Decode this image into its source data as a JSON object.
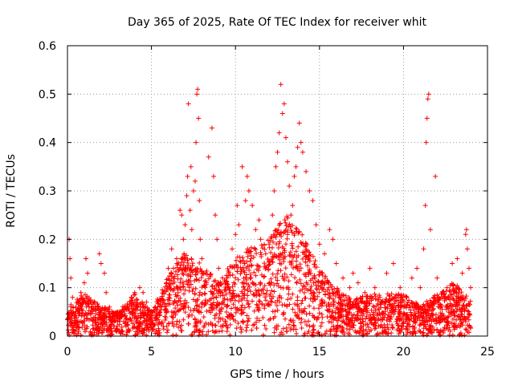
{
  "chart_data": {
    "type": "scatter",
    "title": "Day 365 of 2025, Rate Of TEC Index for receiver whit",
    "xlabel": "GPS time / hours",
    "ylabel": "ROTI / TECUs",
    "xlim": [
      0,
      25
    ],
    "ylim": [
      0,
      0.6
    ],
    "x_ticks": [
      "0",
      "5",
      "10",
      "15",
      "20",
      "25"
    ],
    "y_ticks": [
      "0",
      "0.1",
      "0.2",
      "0.3",
      "0.4",
      "0.5",
      "0.6"
    ],
    "grid": true,
    "marker": "+",
    "color": "#ff0000",
    "series": [
      {
        "points": [
          [
            0.1,
            0.2
          ],
          [
            0.15,
            0.16
          ],
          [
            0.2,
            0.12
          ],
          [
            0.3,
            0.08
          ],
          [
            0.5,
            0.06
          ],
          [
            0.8,
            0.09
          ],
          [
            1.0,
            0.11
          ],
          [
            1.1,
            0.16
          ],
          [
            1.2,
            0.13
          ],
          [
            1.5,
            0.07
          ],
          [
            1.9,
            0.17
          ],
          [
            2.0,
            0.15
          ],
          [
            2.3,
            0.09
          ],
          [
            2.2,
            0.13
          ],
          [
            2.5,
            0.06
          ],
          [
            3.0,
            0.05
          ],
          [
            3.5,
            0.06
          ],
          [
            3.8,
            0.08
          ],
          [
            4.0,
            0.09
          ],
          [
            4.3,
            0.1
          ],
          [
            4.5,
            0.09
          ],
          [
            4.7,
            0.07
          ],
          [
            5.2,
            0.05
          ],
          [
            5.6,
            0.06
          ],
          [
            5.9,
            0.11
          ],
          [
            6.0,
            0.14
          ],
          [
            6.2,
            0.18
          ],
          [
            6.3,
            0.12
          ],
          [
            6.5,
            0.16
          ],
          [
            6.7,
            0.26
          ],
          [
            6.8,
            0.25
          ],
          [
            6.9,
            0.2
          ],
          [
            7.0,
            0.23
          ],
          [
            7.1,
            0.29
          ],
          [
            7.15,
            0.33
          ],
          [
            7.2,
            0.48
          ],
          [
            7.3,
            0.26
          ],
          [
            7.35,
            0.35
          ],
          [
            7.4,
            0.22
          ],
          [
            7.5,
            0.3
          ],
          [
            7.6,
            0.32
          ],
          [
            7.65,
            0.4
          ],
          [
            7.7,
            0.5
          ],
          [
            7.75,
            0.51
          ],
          [
            7.8,
            0.45
          ],
          [
            7.85,
            0.28
          ],
          [
            7.9,
            0.2
          ],
          [
            8.0,
            0.16
          ],
          [
            8.2,
            0.1
          ],
          [
            8.4,
            0.37
          ],
          [
            8.6,
            0.43
          ],
          [
            8.7,
            0.33
          ],
          [
            8.8,
            0.25
          ],
          [
            8.9,
            0.2
          ],
          [
            9.0,
            0.14
          ],
          [
            9.2,
            0.09
          ],
          [
            9.5,
            0.12
          ],
          [
            9.8,
            0.18
          ],
          [
            10.0,
            0.21
          ],
          [
            10.1,
            0.27
          ],
          [
            10.2,
            0.23
          ],
          [
            10.4,
            0.35
          ],
          [
            10.6,
            0.28
          ],
          [
            10.7,
            0.33
          ],
          [
            10.8,
            0.3
          ],
          [
            11.0,
            0.27
          ],
          [
            11.2,
            0.22
          ],
          [
            11.4,
            0.24
          ],
          [
            11.5,
            0.2
          ],
          [
            11.8,
            0.17
          ],
          [
            12.0,
            0.19
          ],
          [
            12.2,
            0.25
          ],
          [
            12.3,
            0.3
          ],
          [
            12.4,
            0.35
          ],
          [
            12.5,
            0.38
          ],
          [
            12.6,
            0.42
          ],
          [
            12.7,
            0.52
          ],
          [
            12.8,
            0.46
          ],
          [
            12.9,
            0.48
          ],
          [
            13.0,
            0.41
          ],
          [
            13.1,
            0.36
          ],
          [
            13.2,
            0.31
          ],
          [
            13.3,
            0.25
          ],
          [
            13.4,
            0.27
          ],
          [
            13.5,
            0.33
          ],
          [
            13.6,
            0.35
          ],
          [
            13.7,
            0.39
          ],
          [
            13.8,
            0.44
          ],
          [
            13.9,
            0.4
          ],
          [
            14.0,
            0.38
          ],
          [
            14.2,
            0.34
          ],
          [
            14.4,
            0.3
          ],
          [
            14.6,
            0.28
          ],
          [
            14.8,
            0.23
          ],
          [
            15.0,
            0.19
          ],
          [
            15.3,
            0.17
          ],
          [
            15.6,
            0.22
          ],
          [
            15.8,
            0.2
          ],
          [
            16.0,
            0.15
          ],
          [
            16.4,
            0.12
          ],
          [
            16.8,
            0.1
          ],
          [
            17.0,
            0.13
          ],
          [
            17.3,
            0.11
          ],
          [
            17.7,
            0.09
          ],
          [
            18.0,
            0.14
          ],
          [
            18.3,
            0.1
          ],
          [
            18.6,
            0.08
          ],
          [
            19.0,
            0.13
          ],
          [
            19.4,
            0.15
          ],
          [
            19.8,
            0.1
          ],
          [
            20.2,
            0.08
          ],
          [
            20.5,
            0.12
          ],
          [
            20.8,
            0.14
          ],
          [
            21.0,
            0.1
          ],
          [
            21.2,
            0.18
          ],
          [
            21.3,
            0.27
          ],
          [
            21.35,
            0.4
          ],
          [
            21.4,
            0.45
          ],
          [
            21.45,
            0.49
          ],
          [
            21.5,
            0.5
          ],
          [
            21.6,
            0.22
          ],
          [
            21.9,
            0.33
          ],
          [
            22.0,
            0.12
          ],
          [
            22.3,
            0.09
          ],
          [
            22.6,
            0.1
          ],
          [
            22.9,
            0.15
          ],
          [
            23.2,
            0.16
          ],
          [
            23.5,
            0.13
          ],
          [
            23.7,
            0.21
          ],
          [
            23.75,
            0.22
          ],
          [
            23.8,
            0.18
          ],
          [
            23.9,
            0.14
          ],
          [
            24.0,
            0.1
          ]
        ]
      }
    ],
    "dense_band": {
      "x_start": 0,
      "x_end": 24,
      "profile": [
        [
          0,
          0.05
        ],
        [
          1,
          0.07
        ],
        [
          2,
          0.05
        ],
        [
          3,
          0.04
        ],
        [
          4,
          0.07
        ],
        [
          5,
          0.04
        ],
        [
          6,
          0.1
        ],
        [
          7,
          0.14
        ],
        [
          8,
          0.12
        ],
        [
          9,
          0.09
        ],
        [
          10,
          0.13
        ],
        [
          11,
          0.15
        ],
        [
          12,
          0.16
        ],
        [
          13,
          0.2
        ],
        [
          14,
          0.17
        ],
        [
          15,
          0.11
        ],
        [
          16,
          0.08
        ],
        [
          17,
          0.06
        ],
        [
          18,
          0.07
        ],
        [
          19,
          0.07
        ],
        [
          20,
          0.07
        ],
        [
          21,
          0.05
        ],
        [
          22,
          0.07
        ],
        [
          23,
          0.09
        ],
        [
          24,
          0.06
        ]
      ]
    }
  }
}
